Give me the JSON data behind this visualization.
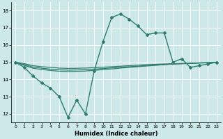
{
  "title": "",
  "xlabel": "Humidex (Indice chaleur)",
  "ylabel": "",
  "bg_color": "#cce8e8",
  "grid_color": "#ffffff",
  "line_color": "#2e7d6e",
  "xlim": [
    -0.5,
    23.5
  ],
  "ylim": [
    11.5,
    18.5
  ],
  "xticks": [
    0,
    1,
    2,
    3,
    4,
    5,
    6,
    7,
    8,
    9,
    10,
    11,
    12,
    13,
    14,
    15,
    16,
    17,
    18,
    19,
    20,
    21,
    22,
    23
  ],
  "yticks": [
    12,
    13,
    14,
    15,
    16,
    17,
    18
  ],
  "lines": [
    {
      "x": [
        0,
        1,
        2,
        3,
        4,
        5,
        6,
        7,
        8,
        9,
        10,
        11,
        12,
        13,
        14,
        15,
        16,
        17,
        18,
        19,
        20,
        21,
        22,
        23
      ],
      "y": [
        15.0,
        14.7,
        14.2,
        13.8,
        13.5,
        13.0,
        11.8,
        12.8,
        12.0,
        14.5,
        16.2,
        17.6,
        17.8,
        17.5,
        17.1,
        16.6,
        16.7,
        16.7,
        15.0,
        15.2,
        14.7,
        14.8,
        14.9,
        15.0
      ],
      "marker": "D",
      "markersize": 2.0,
      "linewidth": 1.0
    },
    {
      "x": [
        0,
        1,
        2,
        3,
        4,
        5,
        6,
        7,
        8,
        9,
        10,
        11,
        12,
        13,
        14,
        15,
        16,
        17,
        18,
        19,
        20,
        21,
        22,
        23
      ],
      "y": [
        15.0,
        14.82,
        14.65,
        14.58,
        14.52,
        14.48,
        14.46,
        14.47,
        14.49,
        14.53,
        14.57,
        14.61,
        14.66,
        14.7,
        14.74,
        14.78,
        14.82,
        14.86,
        14.89,
        14.91,
        14.93,
        14.95,
        14.97,
        15.0
      ],
      "marker": null,
      "markersize": 0,
      "linewidth": 0.9
    },
    {
      "x": [
        0,
        1,
        2,
        3,
        4,
        5,
        6,
        7,
        8,
        9,
        10,
        11,
        12,
        13,
        14,
        15,
        16,
        17,
        18,
        19,
        20,
        21,
        22,
        23
      ],
      "y": [
        15.0,
        14.87,
        14.72,
        14.65,
        14.6,
        14.56,
        14.54,
        14.55,
        14.57,
        14.6,
        14.63,
        14.67,
        14.71,
        14.74,
        14.77,
        14.81,
        14.84,
        14.87,
        14.9,
        14.92,
        14.94,
        14.96,
        14.97,
        15.0
      ],
      "marker": null,
      "markersize": 0,
      "linewidth": 0.9
    },
    {
      "x": [
        0,
        1,
        2,
        3,
        4,
        5,
        6,
        7,
        8,
        9,
        10,
        11,
        12,
        13,
        14,
        15,
        16,
        17,
        18,
        19,
        20,
        21,
        22,
        23
      ],
      "y": [
        15.0,
        14.92,
        14.8,
        14.74,
        14.7,
        14.66,
        14.64,
        14.65,
        14.66,
        14.69,
        14.71,
        14.74,
        14.77,
        14.8,
        14.83,
        14.86,
        14.88,
        14.9,
        14.92,
        14.93,
        14.94,
        14.96,
        14.97,
        15.0
      ],
      "marker": null,
      "markersize": 0,
      "linewidth": 0.9
    }
  ]
}
